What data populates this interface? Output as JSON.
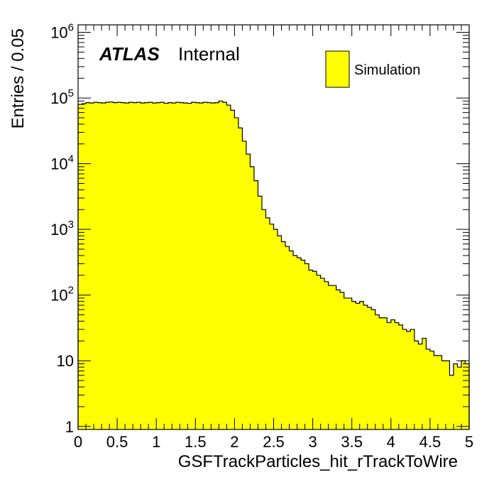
{
  "chart_data": {
    "type": "bar",
    "style": "filled-step-histogram",
    "xlabel": "GSFTrackParticles_hit_rTrackToWire",
    "ylabel": "Entries / 0.05",
    "xlim": [
      0,
      5
    ],
    "ylim": [
      0.9,
      1300000
    ],
    "y_scale": "log",
    "bin_width": 0.05,
    "x_ticks": [
      "0",
      "0.5",
      "1",
      "1.5",
      "2",
      "2.5",
      "3",
      "3.5",
      "4",
      "4.5",
      "5"
    ],
    "y_ticks": [
      {
        "value": 1,
        "base": "1",
        "exp": ""
      },
      {
        "value": 10,
        "base": "10",
        "exp": ""
      },
      {
        "value": 100,
        "base": "10",
        "exp": "2"
      },
      {
        "value": 1000,
        "base": "10",
        "exp": "3"
      },
      {
        "value": 10000,
        "base": "10",
        "exp": "4"
      },
      {
        "value": 100000,
        "base": "10",
        "exp": "5"
      },
      {
        "value": 1000000,
        "base": "10",
        "exp": "6"
      }
    ],
    "label_main": "ATLAS",
    "label_sub": "Internal",
    "legend": [
      {
        "name": "Simulation",
        "color": "#ffff00"
      }
    ],
    "legend_position": "top-right",
    "fill_color": "#ffff00",
    "line_color": "#000000",
    "values": [
      80000,
      82000,
      85000,
      84000,
      86000,
      85000,
      84000,
      86000,
      87000,
      85000,
      86000,
      85000,
      84000,
      86000,
      85000,
      86000,
      84000,
      85000,
      86000,
      84000,
      85000,
      86000,
      83000,
      85000,
      84000,
      86000,
      85000,
      84000,
      83000,
      86000,
      85000,
      84000,
      86000,
      85000,
      84000,
      85000,
      90000,
      86000,
      78000,
      65000,
      50000,
      35000,
      22000,
      14000,
      9000,
      5500,
      3200,
      2000,
      1500,
      1200,
      1000,
      800,
      650,
      550,
      470,
      400,
      370,
      340,
      300,
      240,
      230,
      200,
      180,
      160,
      140,
      140,
      120,
      110,
      90,
      90,
      80,
      75,
      80,
      70,
      65,
      60,
      50,
      45,
      45,
      38,
      42,
      38,
      35,
      30,
      28,
      30,
      20,
      18,
      22,
      15,
      14,
      12,
      12,
      10,
      10,
      6,
      9,
      8,
      10,
      9
    ]
  }
}
